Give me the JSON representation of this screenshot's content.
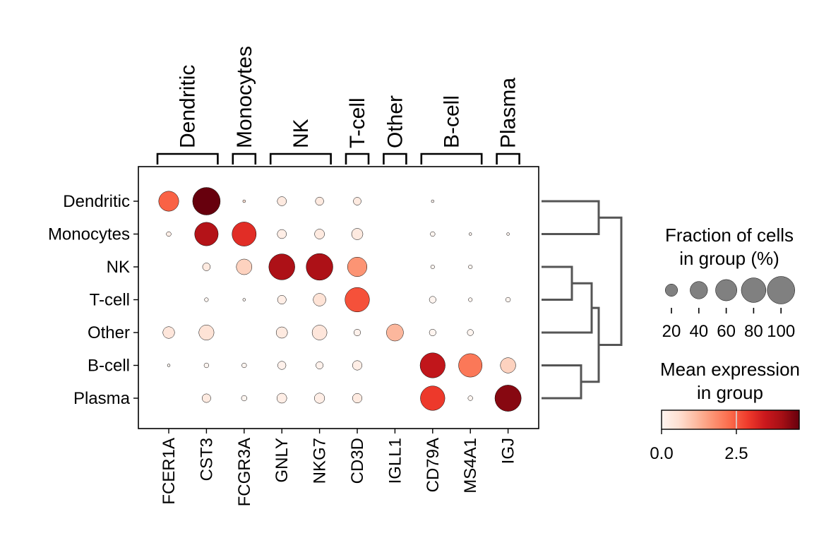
{
  "chart_data": {
    "type": "dotplot",
    "groups": [
      "Dendritic",
      "Monocytes",
      "NK",
      "T-cell",
      "Other",
      "B-cell",
      "Plasma"
    ],
    "genes": [
      "FCER1A",
      "CST3",
      "FCGR3A",
      "GNLY",
      "NKG7",
      "CD3D",
      "IGLL1",
      "CD79A",
      "MS4A1",
      "IGJ"
    ],
    "gene_group_brackets": [
      {
        "label": "Dendritic",
        "genes": [
          "FCER1A",
          "CST3"
        ]
      },
      {
        "label": "Monocytes",
        "genes": [
          "FCGR3A"
        ]
      },
      {
        "label": "NK",
        "genes": [
          "GNLY",
          "NKG7"
        ]
      },
      {
        "label": "T-cell",
        "genes": [
          "CD3D"
        ]
      },
      {
        "label": "Other",
        "genes": [
          "IGLL1"
        ]
      },
      {
        "label": "B-cell",
        "genes": [
          "CD79A",
          "MS4A1"
        ]
      },
      {
        "label": "Plasma",
        "genes": [
          "IGJ"
        ]
      }
    ],
    "fraction_pct": [
      [
        53,
        100,
        1,
        11,
        9,
        8,
        0,
        1,
        0,
        0
      ],
      [
        3,
        73,
        77,
        11,
        13,
        17,
        0,
        3,
        1,
        1
      ],
      [
        0,
        8,
        32,
        89,
        94,
        50,
        0,
        2,
        2,
        0
      ],
      [
        0,
        2,
        1,
        10,
        21,
        79,
        0,
        6,
        2,
        3
      ],
      [
        18,
        30,
        0,
        17,
        29,
        6,
        38,
        6,
        5,
        0
      ],
      [
        1,
        3,
        3,
        9,
        7,
        12,
        0,
        83,
        73,
        31
      ],
      [
        0,
        10,
        4,
        13,
        14,
        12,
        0,
        79,
        3,
        91
      ]
    ],
    "mean_expression": [
      [
        2.4,
        4.7,
        0.5,
        0.3,
        0.3,
        0.3,
        0,
        0,
        0,
        0
      ],
      [
        0.2,
        3.8,
        3.1,
        0.2,
        0.3,
        0.3,
        0,
        0,
        0,
        0
      ],
      [
        0,
        0.3,
        0.8,
        3.9,
        3.9,
        1.7,
        0,
        0,
        0,
        0
      ],
      [
        0,
        0,
        0,
        0.2,
        0.5,
        2.6,
        0,
        0,
        0,
        0
      ],
      [
        0.4,
        0.5,
        0,
        0.3,
        0.4,
        0.1,
        1.2,
        0,
        0,
        0
      ],
      [
        0,
        0,
        0,
        0.1,
        0.1,
        0.2,
        0,
        3.6,
        2.1,
        0.8
      ],
      [
        0,
        0.3,
        0,
        0.2,
        0.2,
        0.3,
        0,
        2.9,
        0,
        4.3
      ]
    ],
    "dendrogram": {
      "leaves": [
        "Dendritic",
        "Monocytes",
        "NK",
        "T-cell",
        "Other",
        "B-cell",
        "Plasma"
      ],
      "merges": [
        [
          "Dendritic",
          "Monocytes"
        ],
        [
          "NK",
          "T-cell"
        ],
        [
          "B-cell",
          "Plasma"
        ],
        [
          "NK+T-cell",
          "Other"
        ],
        [
          "NK+T-cell+Other",
          "B-cell+Plasma"
        ],
        [
          "Dendritic+Monocytes",
          "NK+T-cell+Other+B-cell+Plasma"
        ]
      ]
    },
    "size_legend": {
      "title_lines": [
        "Fraction of cells",
        "in group (%)"
      ],
      "values": [
        20,
        40,
        60,
        80,
        100
      ],
      "tick_labels": [
        "20",
        "40",
        "60",
        "80",
        "100"
      ]
    },
    "color_legend": {
      "title_lines": [
        "Mean expression",
        "in group"
      ],
      "colormap": "Reds",
      "vmin": 0,
      "vmax": 4.6,
      "ticks": [
        0.0,
        2.5
      ],
      "tick_labels": [
        "0.0",
        "2.5"
      ]
    },
    "colors": {
      "size_legend_dot": "#808080",
      "dendrogram": "#555555",
      "reds": [
        "#fff5f0",
        "#fee0d2",
        "#fcbba1",
        "#fc9272",
        "#fb6a4a",
        "#ef3b2c",
        "#cb181d",
        "#a50f15",
        "#67000d"
      ]
    }
  }
}
